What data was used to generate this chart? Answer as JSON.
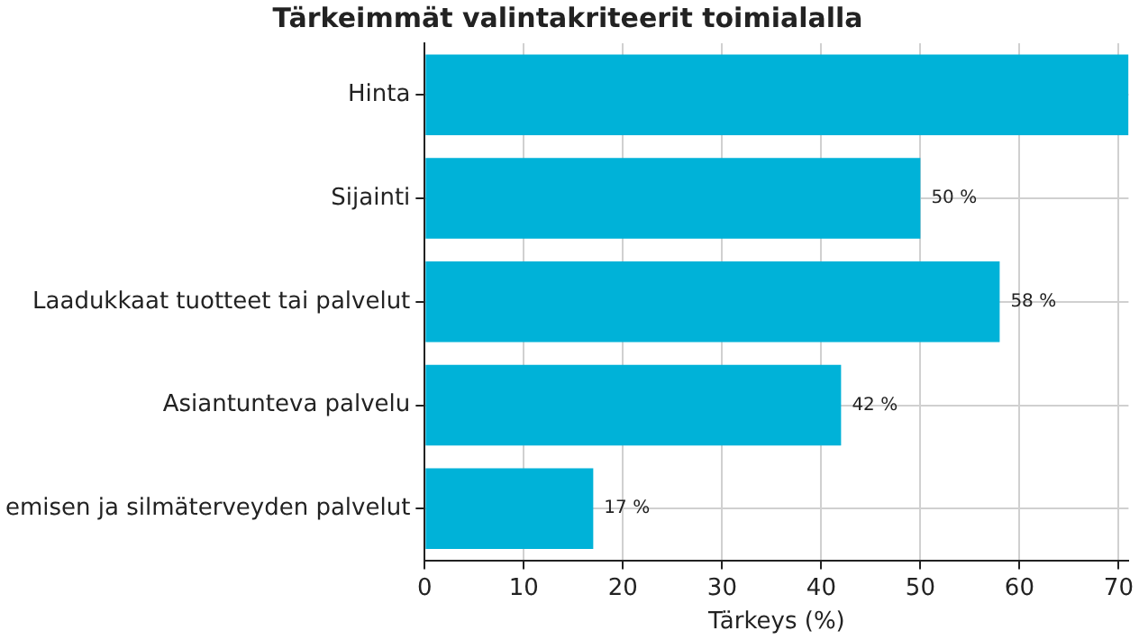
{
  "chart_data": {
    "type": "bar",
    "orientation": "horizontal",
    "title": "Tärkeimmät valintakriteerit toimialalla",
    "xlabel": "Tärkeys (%)",
    "categories": [
      "Hinta",
      "Sijainti",
      "Laadukkaat tuotteet tai palvelut",
      "Asiantunteva palvelu",
      "emisen ja silmäterveyden palvelut"
    ],
    "values": [
      71,
      50,
      58,
      42,
      17
    ],
    "value_labels": [
      null,
      "50 %",
      "58 %",
      "42 %",
      "17 %"
    ],
    "color": "#00b2d8",
    "xlim": [
      0,
      71
    ],
    "xticks": [
      0,
      10,
      20,
      30,
      40,
      50,
      60,
      70
    ],
    "grid": true,
    "legend": false
  }
}
